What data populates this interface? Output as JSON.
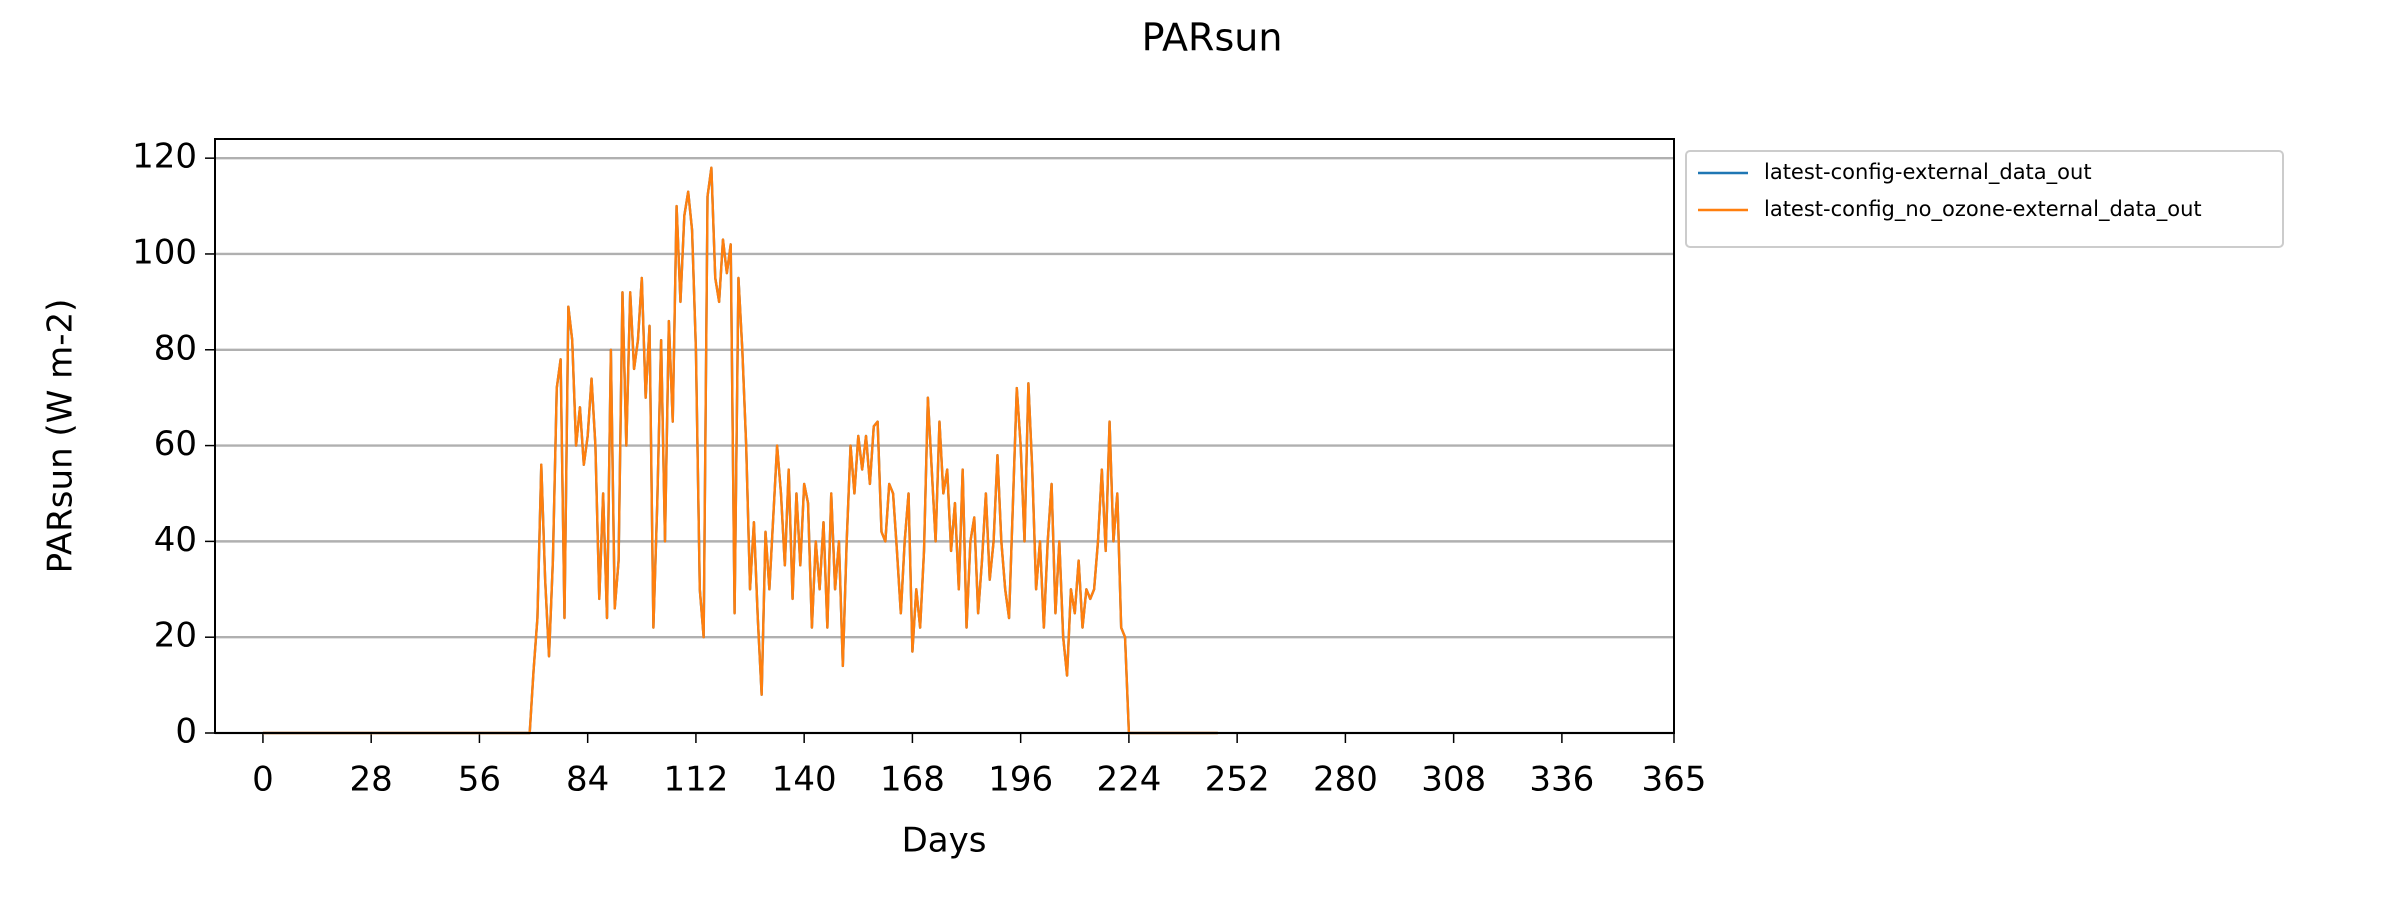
{
  "chart_data": {
    "type": "line",
    "title": "PARsun",
    "x_label": "Days",
    "y_label": "PARsun (W m-2)",
    "xlim": [
      -12.4,
      365
    ],
    "ylim": [
      0,
      124
    ],
    "xticks": [
      0,
      28,
      56,
      84,
      112,
      140,
      168,
      196,
      224,
      252,
      280,
      308,
      336,
      365
    ],
    "yticks": [
      0,
      20,
      40,
      60,
      80,
      100,
      120
    ],
    "grid": "y",
    "legend": "outside-upper-right",
    "x": [
      0,
      69,
      70,
      71,
      72,
      73,
      74,
      75,
      76,
      77,
      78,
      79,
      80,
      81,
      82,
      83,
      84,
      85,
      86,
      87,
      88,
      89,
      90,
      91,
      92,
      93,
      94,
      95,
      96,
      97,
      98,
      99,
      100,
      101,
      102,
      103,
      104,
      105,
      106,
      107,
      108,
      109,
      110,
      111,
      112,
      113,
      114,
      115,
      116,
      117,
      118,
      119,
      120,
      121,
      122,
      123,
      124,
      125,
      126,
      127,
      128,
      129,
      130,
      131,
      132,
      133,
      134,
      135,
      136,
      137,
      138,
      139,
      140,
      141,
      142,
      143,
      144,
      145,
      146,
      147,
      148,
      149,
      150,
      151,
      152,
      153,
      154,
      155,
      156,
      157,
      158,
      159,
      160,
      161,
      162,
      163,
      164,
      165,
      166,
      167,
      168,
      169,
      170,
      171,
      172,
      173,
      174,
      175,
      176,
      177,
      178,
      179,
      180,
      181,
      182,
      183,
      184,
      185,
      186,
      187,
      188,
      189,
      190,
      191,
      192,
      193,
      194,
      195,
      196,
      197,
      198,
      199,
      200,
      201,
      202,
      203,
      204,
      205,
      206,
      207,
      208,
      209,
      210,
      211,
      212,
      213,
      214,
      215,
      216,
      217,
      218,
      219,
      220,
      221,
      222,
      223,
      224,
      247
    ],
    "series": [
      {
        "name": "latest-config-external_data_out",
        "color": "#1f77b4",
        "values": [
          0,
          0,
          13,
          24,
          56,
          32,
          16,
          36,
          72,
          78,
          24,
          89,
          82,
          60,
          68,
          56,
          62,
          74,
          60,
          28,
          50,
          24,
          80,
          26,
          36,
          92,
          60,
          92,
          76,
          82,
          95,
          70,
          85,
          22,
          48,
          82,
          40,
          86,
          65,
          110,
          90,
          108,
          113,
          105,
          80,
          30,
          20,
          112,
          118,
          95,
          90,
          103,
          96,
          102,
          25,
          95,
          80,
          60,
          30,
          44,
          24,
          8,
          42,
          30,
          45,
          60,
          50,
          35,
          55,
          28,
          50,
          35,
          52,
          48,
          22,
          40,
          30,
          44,
          22,
          50,
          30,
          40,
          14,
          40,
          60,
          50,
          62,
          55,
          62,
          52,
          64,
          65,
          42,
          40,
          52,
          50,
          38,
          25,
          40,
          50,
          17,
          30,
          22,
          38,
          70,
          55,
          40,
          65,
          50,
          55,
          38,
          48,
          30,
          55,
          22,
          40,
          45,
          25,
          36,
          50,
          32,
          40,
          58,
          40,
          30,
          24,
          48,
          72,
          60,
          40,
          73,
          55,
          30,
          40,
          22,
          40,
          52,
          25,
          40,
          20,
          12,
          30,
          25,
          36,
          22,
          30,
          28,
          30,
          40,
          55,
          38,
          65,
          40,
          50,
          22,
          20,
          0,
          0
        ]
      },
      {
        "name": "latest-config_no_ozone-external_data_out",
        "color": "#ff7f0e",
        "values": [
          0,
          0,
          13,
          24,
          56,
          32,
          16,
          36,
          72,
          78,
          24,
          89,
          82,
          60,
          68,
          56,
          62,
          74,
          60,
          28,
          50,
          24,
          80,
          26,
          36,
          92,
          60,
          92,
          76,
          82,
          95,
          70,
          85,
          22,
          48,
          82,
          40,
          86,
          65,
          110,
          90,
          108,
          113,
          105,
          80,
          30,
          20,
          112,
          118,
          95,
          90,
          103,
          96,
          102,
          25,
          95,
          80,
          60,
          30,
          44,
          24,
          8,
          42,
          30,
          45,
          60,
          50,
          35,
          55,
          28,
          50,
          35,
          52,
          48,
          22,
          40,
          30,
          44,
          22,
          50,
          30,
          40,
          14,
          40,
          60,
          50,
          62,
          55,
          62,
          52,
          64,
          65,
          42,
          40,
          52,
          50,
          38,
          25,
          40,
          50,
          17,
          30,
          22,
          38,
          70,
          55,
          40,
          65,
          50,
          55,
          38,
          48,
          30,
          55,
          22,
          40,
          45,
          25,
          36,
          50,
          32,
          40,
          58,
          40,
          30,
          24,
          48,
          72,
          60,
          40,
          73,
          55,
          30,
          40,
          22,
          40,
          52,
          25,
          40,
          20,
          12,
          30,
          25,
          36,
          22,
          30,
          28,
          30,
          40,
          55,
          38,
          65,
          40,
          50,
          22,
          20,
          0,
          0
        ]
      }
    ]
  }
}
